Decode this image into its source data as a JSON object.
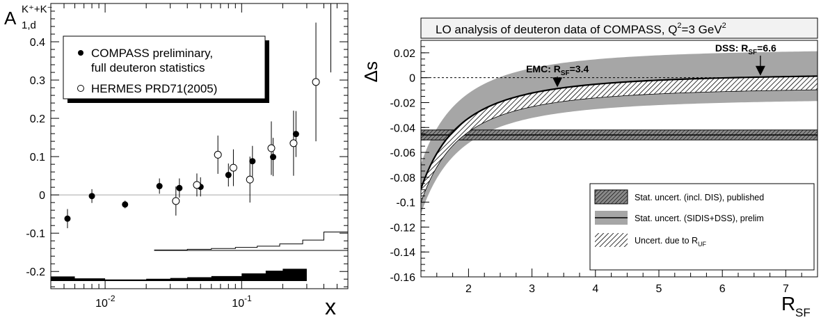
{
  "chart_data": [
    {
      "type": "scatter",
      "title": "",
      "ylabel": "A",
      "ylabel_sup": "K⁺+K⁻",
      "ylabel_sub": "1,d",
      "xlabel": "x",
      "xscale": "log",
      "xlim": [
        0.004,
        0.6
      ],
      "ylim": [
        -0.245,
        0.5
      ],
      "xticklabels": [
        {
          "x": 0.01,
          "base": "10",
          "exp": "-2"
        },
        {
          "x": 0.1,
          "base": "10",
          "exp": "-1"
        }
      ],
      "yticks": [
        {
          "v": -0.2,
          "label": "-0.2"
        },
        {
          "v": -0.1,
          "label": "-0.1"
        },
        {
          "v": 0,
          "label": "0"
        },
        {
          "v": 0.1,
          "label": "0.1"
        },
        {
          "v": 0.2,
          "label": "0.2"
        },
        {
          "v": 0.3,
          "label": "0.3"
        },
        {
          "v": 0.4,
          "label": "0.4"
        }
      ],
      "legend": {
        "placement": "top-left",
        "entries": [
          {
            "marker": "filled-circle",
            "line1": "COMPASS preliminary,",
            "line2": "full deuteron statistics"
          },
          {
            "marker": "open-circle",
            "line1": "HERMES PRD71(2005)",
            "line2": ""
          }
        ]
      },
      "series": [
        {
          "name": "COMPASS preliminary, full deuteron statistics",
          "marker": "filled-circle",
          "points": [
            {
              "x": 0.0053,
              "y": -0.062,
              "err": 0.025
            },
            {
              "x": 0.008,
              "y": -0.003,
              "err": 0.018
            },
            {
              "x": 0.014,
              "y": -0.025,
              "err": 0.01
            },
            {
              "x": 0.025,
              "y": 0.023,
              "err": 0.02
            },
            {
              "x": 0.035,
              "y": 0.018,
              "err": 0.025
            },
            {
              "x": 0.05,
              "y": 0.021,
              "err": 0.025
            },
            {
              "x": 0.08,
              "y": 0.052,
              "err": 0.03
            },
            {
              "x": 0.12,
              "y": 0.088,
              "err": 0.04
            },
            {
              "x": 0.17,
              "y": 0.099,
              "err": 0.05
            },
            {
              "x": 0.25,
              "y": 0.159,
              "err": 0.06
            }
          ]
        },
        {
          "name": "HERMES PRD71(2005)",
          "marker": "open-circle",
          "points": [
            {
              "x": 0.033,
              "y": -0.016,
              "err": 0.038
            },
            {
              "x": 0.047,
              "y": 0.026,
              "err": 0.03
            },
            {
              "x": 0.067,
              "y": 0.105,
              "err": 0.05
            },
            {
              "x": 0.087,
              "y": 0.071,
              "err": 0.048
            },
            {
              "x": 0.115,
              "y": 0.04,
              "err": 0.06
            },
            {
              "x": 0.165,
              "y": 0.122,
              "err": 0.07
            },
            {
              "x": 0.24,
              "y": 0.135,
              "err": 0.085
            },
            {
              "x": 0.35,
              "y": 0.295,
              "err": 0.155
            }
          ]
        }
      ],
      "extra_error_bar": {
        "x": 0.45,
        "ylow": 0.32,
        "yhigh": 0.5
      },
      "systematic_bands": [
        {
          "name": "COMPASS systematic",
          "style": "filled",
          "base": -0.225,
          "bins": [
            {
              "x0": 0.004,
              "x1": 0.006,
              "h": -0.213
            },
            {
              "x0": 0.006,
              "x1": 0.01,
              "h": -0.218
            },
            {
              "x0": 0.01,
              "x1": 0.02,
              "h": -0.221
            },
            {
              "x0": 0.02,
              "x1": 0.03,
              "h": -0.219
            },
            {
              "x0": 0.03,
              "x1": 0.04,
              "h": -0.217
            },
            {
              "x0": 0.04,
              "x1": 0.06,
              "h": -0.215
            },
            {
              "x0": 0.06,
              "x1": 0.1,
              "h": -0.212
            },
            {
              "x0": 0.1,
              "x1": 0.15,
              "h": -0.205
            },
            {
              "x0": 0.15,
              "x1": 0.2,
              "h": -0.198
            },
            {
              "x0": 0.2,
              "x1": 0.3,
              "h": -0.193
            }
          ]
        },
        {
          "name": "HERMES systematic",
          "style": "outline",
          "base": -0.145,
          "bins": [
            {
              "x0": 0.023,
              "x1": 0.04,
              "h": -0.144
            },
            {
              "x0": 0.04,
              "x1": 0.06,
              "h": -0.142
            },
            {
              "x0": 0.06,
              "x1": 0.09,
              "h": -0.14
            },
            {
              "x0": 0.09,
              "x1": 0.13,
              "h": -0.137
            },
            {
              "x0": 0.13,
              "x1": 0.19,
              "h": -0.134
            },
            {
              "x0": 0.19,
              "x1": 0.28,
              "h": -0.128
            },
            {
              "x0": 0.28,
              "x1": 0.4,
              "h": -0.118
            },
            {
              "x0": 0.4,
              "x1": 0.6,
              "h": -0.097
            }
          ]
        }
      ]
    },
    {
      "type": "line",
      "title_main": "LO analysis of deuteron data of COMPASS, Q",
      "title_sup": "2",
      "title_tail": "=3 GeV",
      "title_sup2": "2",
      "ylabel": "Δs",
      "xlabel_main": "R",
      "xlabel_sub": "SF",
      "xlim": [
        1.25,
        7.5
      ],
      "ylim": [
        -0.16,
        0.03
      ],
      "xticks": [
        2,
        3,
        4,
        5,
        6,
        7
      ],
      "xticklabels": [
        "2",
        "3",
        "4",
        "5",
        "6",
        "7"
      ],
      "yticks": [
        0.02,
        0,
        -0.02,
        -0.04,
        -0.06,
        -0.08,
        -0.1,
        -0.12,
        -0.14,
        -0.16
      ],
      "yticklabels": [
        "0.02",
        "0",
        "-0.02",
        "-0.04",
        "-0.06",
        "-0.08",
        "-0.1",
        "-0.12",
        "-0.14",
        "-0.16"
      ],
      "zero_line": "dashed",
      "published_band": {
        "center": -0.046,
        "half_width": 0.004
      },
      "model": {
        "a": 0.00383,
        "b": 0.1455,
        "stat_half_width": 0.02,
        "uncert_uf_width": 0.011,
        "r_min": 1.25
      },
      "annotations": [
        {
          "main": "EMC: R",
          "sub": "SF",
          "tail": "=3.4",
          "arrow_x": 3.4
        },
        {
          "main": "DSS: R",
          "sub": "SF",
          "tail": "=6.6",
          "arrow_x": 6.6
        }
      ],
      "legend": {
        "placement": "bottom-right",
        "entries": [
          {
            "style": "hatched-dark",
            "label": "Stat. uncert. (incl. DIS), published"
          },
          {
            "style": "gray-band-line",
            "label": "Stat. uncert. (SIDIS+DSS), prelim"
          },
          {
            "style": "hatched",
            "label": "Uncert. due to R",
            "sub": "UF"
          }
        ]
      }
    }
  ]
}
